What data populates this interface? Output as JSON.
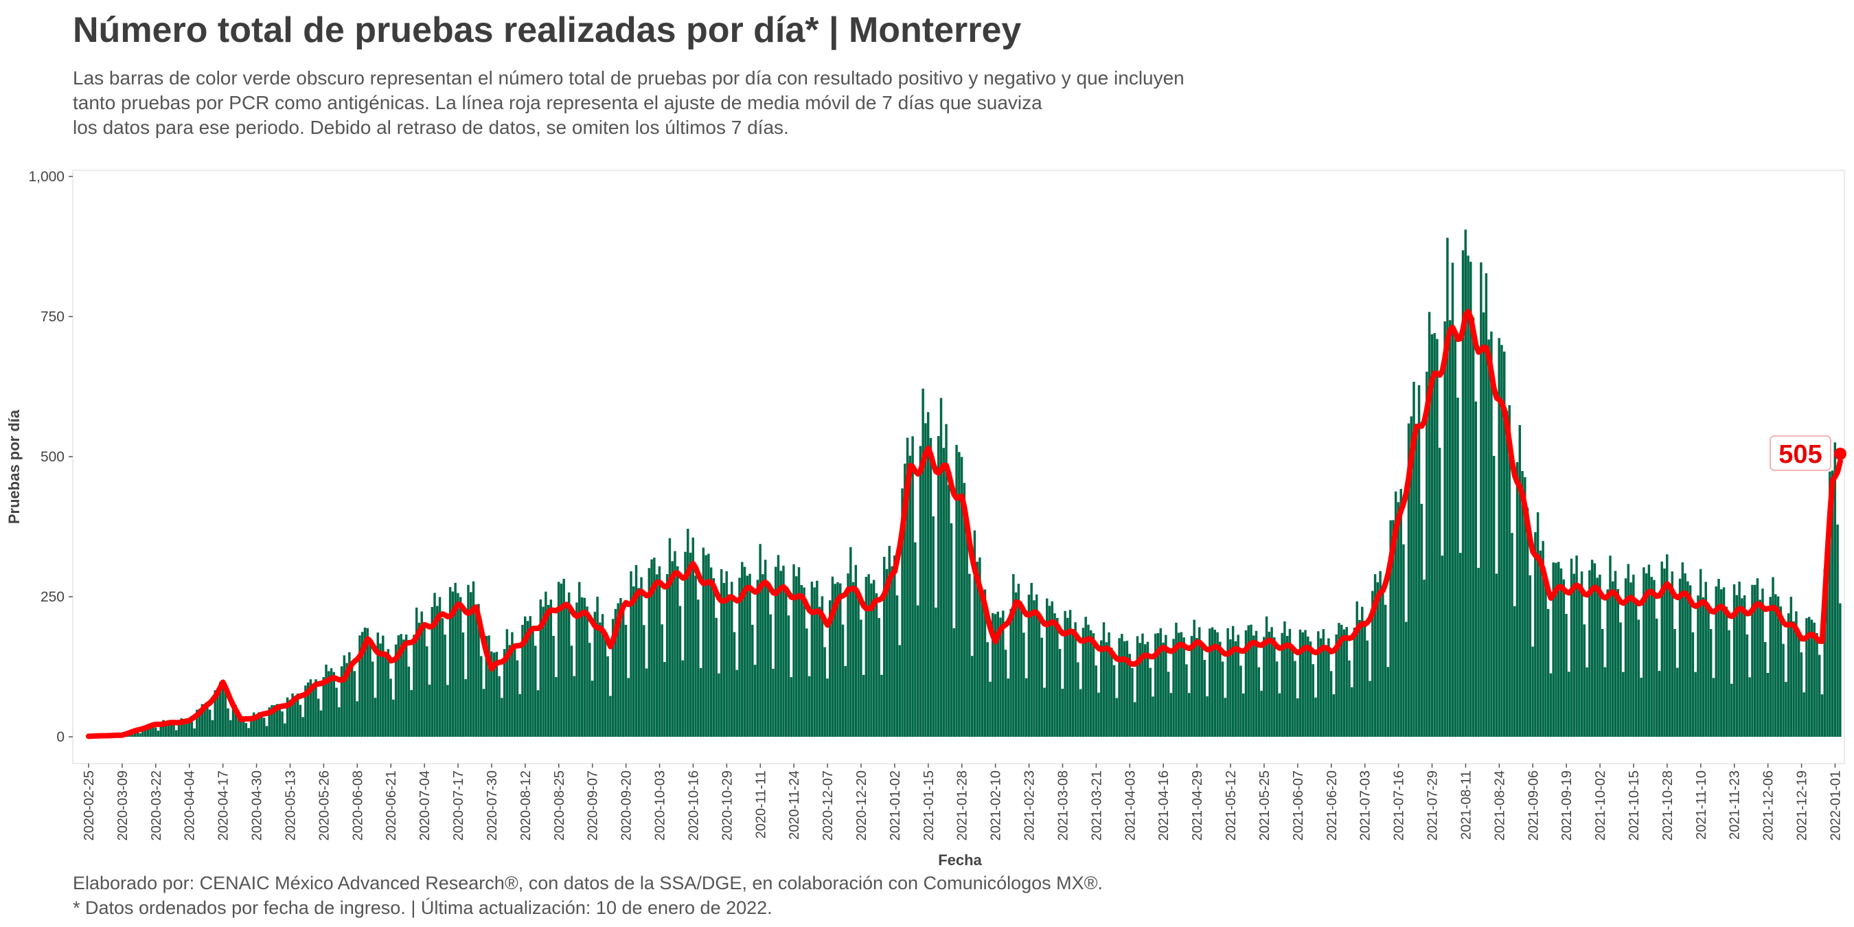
{
  "header": {
    "title": "Número total de pruebas realizadas por día* | Monterrey",
    "subtitle_lines": [
      "Las barras de color verde obscuro representan el número total de pruebas por día con resultado positivo y negativo y que incluyen",
      "tanto pruebas por PCR como antigénicas. La línea roja representa el ajuste de media móvil de 7 días que suaviza",
      "los datos para ese periodo. Debido al retraso de datos, se omiten los últimos 7 días."
    ]
  },
  "footer": {
    "caption_lines": [
      "Elaborado por: CENAIC México Advanced Research®, con datos de la SSA/DGE, en colaboración con Comunicólogos MX®.",
      "* Datos ordenados por fecha de ingreso. | Última actualización: 10 de enero de 2022."
    ]
  },
  "chart_data": {
    "type": "bar",
    "title": "Número total de pruebas realizadas por día* | Monterrey",
    "xlabel": "Fecha",
    "ylabel": "Pruebas por día",
    "x_range": [
      "2020-02-25",
      "2022-01-03"
    ],
    "ylim": [
      0,
      1000
    ],
    "y_ticks": [
      0,
      250,
      500,
      750,
      1000
    ],
    "y_tick_labels": [
      "0",
      "250",
      "500",
      "750",
      "1,000"
    ],
    "x_ticks": [
      "2020-02-25",
      "2020-03-09",
      "2020-03-22",
      "2020-04-04",
      "2020-04-17",
      "2020-04-30",
      "2020-05-13",
      "2020-05-26",
      "2020-06-08",
      "2020-06-21",
      "2020-07-04",
      "2020-07-17",
      "2020-07-30",
      "2020-08-12",
      "2020-08-25",
      "2020-09-07",
      "2020-09-20",
      "2020-10-03",
      "2020-10-16",
      "2020-10-29",
      "2020-11-11",
      "2020-11-24",
      "2020-12-07",
      "2020-12-20",
      "2021-01-02",
      "2021-01-15",
      "2021-01-28",
      "2021-02-10",
      "2021-02-23",
      "2021-03-08",
      "2021-03-21",
      "2021-04-03",
      "2021-04-16",
      "2021-04-29",
      "2021-05-12",
      "2021-05-25",
      "2021-06-07",
      "2021-06-20",
      "2021-07-03",
      "2021-07-16",
      "2021-07-29",
      "2021-08-11",
      "2021-08-24",
      "2021-09-06",
      "2021-09-19",
      "2021-10-02",
      "2021-10-15",
      "2021-10-28",
      "2021-11-10",
      "2021-11-23",
      "2021-12-06",
      "2021-12-19",
      "2022-01-01"
    ],
    "grid": false,
    "colors": {
      "bars": "#006847",
      "moving_average": "#ff0000",
      "end_label": "#e60000"
    },
    "series": [
      {
        "name": "Pruebas por día",
        "type": "bar",
        "profile": [
          [
            "2020-02-25",
            1
          ],
          [
            "2020-03-09",
            3
          ],
          [
            "2020-03-15",
            12
          ],
          [
            "2020-03-22",
            22
          ],
          [
            "2020-04-04",
            28
          ],
          [
            "2020-04-12",
            60
          ],
          [
            "2020-04-17",
            85
          ],
          [
            "2020-04-24",
            30
          ],
          [
            "2020-04-30",
            35
          ],
          [
            "2020-05-13",
            60
          ],
          [
            "2020-05-26",
            100
          ],
          [
            "2020-06-03",
            115
          ],
          [
            "2020-06-12",
            170
          ],
          [
            "2020-06-21",
            135
          ],
          [
            "2020-07-04",
            195
          ],
          [
            "2020-07-17",
            230
          ],
          [
            "2020-07-24",
            225
          ],
          [
            "2020-07-30",
            130
          ],
          [
            "2020-08-12",
            175
          ],
          [
            "2020-08-25",
            235
          ],
          [
            "2020-09-07",
            210
          ],
          [
            "2020-09-14",
            165
          ],
          [
            "2020-09-20",
            240
          ],
          [
            "2020-10-03",
            270
          ],
          [
            "2020-10-16",
            300
          ],
          [
            "2020-10-29",
            240
          ],
          [
            "2020-11-11",
            270
          ],
          [
            "2020-11-24",
            255
          ],
          [
            "2020-12-07",
            215
          ],
          [
            "2020-12-15",
            270
          ],
          [
            "2020-12-24",
            235
          ],
          [
            "2021-01-02",
            290
          ],
          [
            "2021-01-08",
            470
          ],
          [
            "2021-01-15",
            500
          ],
          [
            "2021-01-22",
            470
          ],
          [
            "2021-01-28",
            420
          ],
          [
            "2021-02-04",
            260
          ],
          [
            "2021-02-10",
            180
          ],
          [
            "2021-02-18",
            235
          ],
          [
            "2021-03-08",
            190
          ],
          [
            "2021-03-21",
            165
          ],
          [
            "2021-04-03",
            145
          ],
          [
            "2021-04-16",
            160
          ],
          [
            "2021-04-29",
            165
          ],
          [
            "2021-05-12",
            160
          ],
          [
            "2021-05-25",
            170
          ],
          [
            "2021-06-07",
            160
          ],
          [
            "2021-06-20",
            155
          ],
          [
            "2021-07-03",
            200
          ],
          [
            "2021-07-10",
            260
          ],
          [
            "2021-07-16",
            380
          ],
          [
            "2021-07-23",
            540
          ],
          [
            "2021-07-29",
            620
          ],
          [
            "2021-08-04",
            700
          ],
          [
            "2021-08-11",
            745
          ],
          [
            "2021-08-17",
            700
          ],
          [
            "2021-08-24",
            610
          ],
          [
            "2021-08-30",
            480
          ],
          [
            "2021-09-06",
            340
          ],
          [
            "2021-09-13",
            260
          ],
          [
            "2021-09-19",
            265
          ],
          [
            "2021-10-02",
            258
          ],
          [
            "2021-10-15",
            245
          ],
          [
            "2021-10-28",
            265
          ],
          [
            "2021-11-10",
            235
          ],
          [
            "2021-11-23",
            225
          ],
          [
            "2021-12-06",
            235
          ],
          [
            "2021-12-19",
            180
          ],
          [
            "2021-12-27",
            175
          ],
          [
            "2021-12-29",
            320
          ],
          [
            "2021-12-31",
            450
          ],
          [
            "2022-01-03",
            505
          ]
        ],
        "weekly_pattern": [
          1.12,
          1.18,
          1.14,
          1.1,
          1.05,
          0.78,
          0.45
        ],
        "max_value": 965
      },
      {
        "name": "Media móvil de 7 días",
        "type": "line",
        "points": [
          [
            "2020-02-25",
            1
          ],
          [
            "2020-03-09",
            3
          ],
          [
            "2020-03-15",
            12
          ],
          [
            "2020-03-22",
            22
          ],
          [
            "2020-04-04",
            28
          ],
          [
            "2020-04-12",
            60
          ],
          [
            "2020-04-17",
            95
          ],
          [
            "2020-04-24",
            30
          ],
          [
            "2020-04-30",
            35
          ],
          [
            "2020-05-13",
            60
          ],
          [
            "2020-05-26",
            100
          ],
          [
            "2020-06-03",
            105
          ],
          [
            "2020-06-12",
            170
          ],
          [
            "2020-06-21",
            135
          ],
          [
            "2020-07-04",
            195
          ],
          [
            "2020-07-17",
            230
          ],
          [
            "2020-07-24",
            225
          ],
          [
            "2020-07-30",
            120
          ],
          [
            "2020-08-12",
            175
          ],
          [
            "2020-08-25",
            235
          ],
          [
            "2020-09-07",
            210
          ],
          [
            "2020-09-14",
            165
          ],
          [
            "2020-09-20",
            240
          ],
          [
            "2020-10-03",
            270
          ],
          [
            "2020-10-16",
            300
          ],
          [
            "2020-10-29",
            240
          ],
          [
            "2020-11-11",
            270
          ],
          [
            "2020-11-24",
            255
          ],
          [
            "2020-12-07",
            205
          ],
          [
            "2020-12-15",
            270
          ],
          [
            "2020-12-24",
            225
          ],
          [
            "2021-01-02",
            290
          ],
          [
            "2021-01-08",
            470
          ],
          [
            "2021-01-15",
            500
          ],
          [
            "2021-01-22",
            470
          ],
          [
            "2021-01-28",
            420
          ],
          [
            "2021-02-04",
            260
          ],
          [
            "2021-02-10",
            170
          ],
          [
            "2021-02-18",
            235
          ],
          [
            "2021-03-08",
            190
          ],
          [
            "2021-03-21",
            165
          ],
          [
            "2021-04-03",
            130
          ],
          [
            "2021-04-16",
            155
          ],
          [
            "2021-04-29",
            165
          ],
          [
            "2021-05-12",
            150
          ],
          [
            "2021-05-25",
            170
          ],
          [
            "2021-06-07",
            155
          ],
          [
            "2021-06-20",
            155
          ],
          [
            "2021-07-03",
            200
          ],
          [
            "2021-07-10",
            260
          ],
          [
            "2021-07-16",
            380
          ],
          [
            "2021-07-23",
            540
          ],
          [
            "2021-07-29",
            620
          ],
          [
            "2021-08-04",
            700
          ],
          [
            "2021-08-11",
            745
          ],
          [
            "2021-08-17",
            700
          ],
          [
            "2021-08-24",
            610
          ],
          [
            "2021-08-30",
            480
          ],
          [
            "2021-09-06",
            340
          ],
          [
            "2021-09-13",
            255
          ],
          [
            "2021-09-19",
            265
          ],
          [
            "2021-10-02",
            258
          ],
          [
            "2021-10-15",
            240
          ],
          [
            "2021-10-28",
            265
          ],
          [
            "2021-11-10",
            235
          ],
          [
            "2021-11-23",
            220
          ],
          [
            "2021-12-06",
            235
          ],
          [
            "2021-12-19",
            180
          ],
          [
            "2021-12-27",
            175
          ],
          [
            "2021-12-29",
            320
          ],
          [
            "2021-12-31",
            450
          ],
          [
            "2022-01-03",
            505
          ]
        ]
      }
    ],
    "annotations": [
      {
        "text": "505",
        "date": "2022-01-03",
        "value": 505
      }
    ]
  }
}
